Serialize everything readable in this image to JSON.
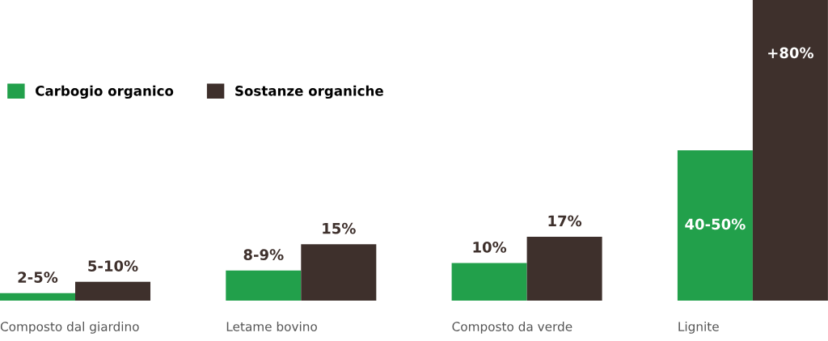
{
  "chart_data": {
    "type": "bar",
    "categories": [
      "Composto dal giardino",
      "Letame bovino",
      "Composto da verde",
      "Lignite"
    ],
    "series": [
      {
        "name": "Carbogio organico",
        "color": "#22a04b",
        "values": [
          2,
          8,
          10,
          40
        ],
        "value_labels": [
          "2-5%",
          "8-9%",
          "10%",
          "40-50%"
        ]
      },
      {
        "name": "Sostanze organiche",
        "color": "#3e302c",
        "values": [
          5,
          15,
          17,
          80
        ],
        "value_labels": [
          "5-10%",
          "15%",
          "17%",
          "+80%"
        ]
      }
    ],
    "legend": "top left"
  }
}
